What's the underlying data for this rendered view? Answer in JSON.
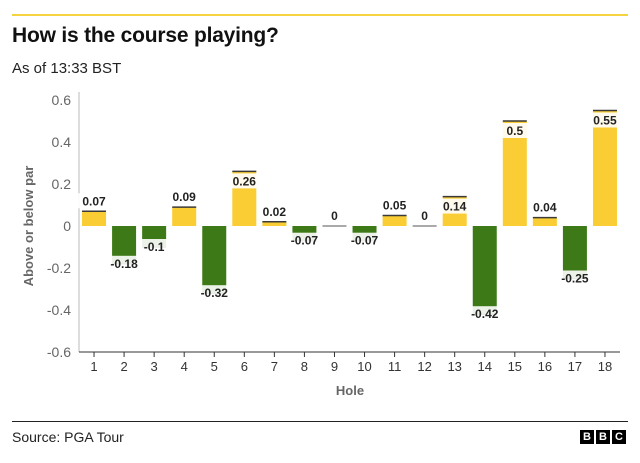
{
  "header": {
    "title": "How is the course playing?",
    "subtitle": "As of 13:33 BST"
  },
  "footer": {
    "source": "Source: PGA Tour",
    "logo_letters": [
      "B",
      "B",
      "C"
    ]
  },
  "colors": {
    "positive": "#f9cd33",
    "negative": "#3d7a17",
    "axis_text": "#666666",
    "grid": "#dddddd",
    "accent_rule": "#f5d33f"
  },
  "chart_data": {
    "type": "bar",
    "title": "How is the course playing?",
    "subtitle": "As of 13:33 BST",
    "xlabel": "Hole",
    "ylabel": "Above or below par",
    "ylim": [
      -0.6,
      0.6
    ],
    "yticks": [
      0.6,
      0.4,
      0.2,
      0,
      -0.2,
      -0.4,
      -0.6
    ],
    "ytick_labels": [
      "0.6",
      "0.4",
      "0.2",
      "0",
      "-0.2",
      "-0.4",
      "-0.6"
    ],
    "categories": [
      "1",
      "2",
      "3",
      "4",
      "5",
      "6",
      "7",
      "8",
      "9",
      "10",
      "11",
      "12",
      "13",
      "14",
      "15",
      "16",
      "17",
      "18"
    ],
    "values": [
      0.07,
      -0.18,
      -0.1,
      0.09,
      -0.32,
      0.26,
      0.02,
      -0.07,
      0,
      -0.07,
      0.05,
      0,
      0.14,
      -0.42,
      0.5,
      0.04,
      -0.25,
      0.55
    ],
    "value_labels": [
      "0.07",
      "-0.18",
      "-0.1",
      "0.09",
      "-0.32",
      "0.26",
      "0.02",
      "-0.07",
      "0",
      "-0.07",
      "0.05",
      "0",
      "0.14",
      "-0.42",
      "0.5",
      "0.04",
      "-0.25",
      "0.55"
    ],
    "grid": false
  }
}
